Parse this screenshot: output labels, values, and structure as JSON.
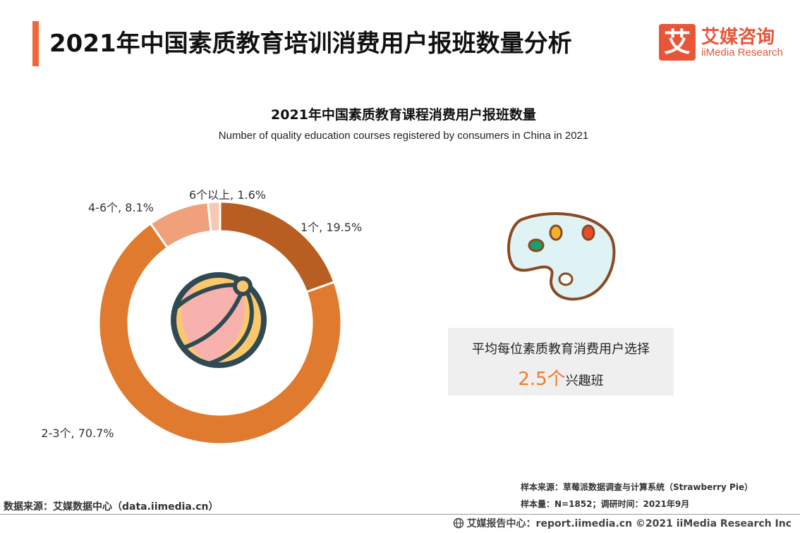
{
  "header": {
    "title": "2021年中国素质教育培训消费用户报班数量分析",
    "logo_cn": "艾媒咨询",
    "logo_en": "iiMedia Research",
    "logo_glyph": "艾"
  },
  "chart_data": {
    "type": "pie",
    "title": "2021年中国素质教育课程消费用户报班数量",
    "subtitle": "Number of quality education courses registered by consumers in China in 2021",
    "categories": [
      "1个",
      "2-3个",
      "4-6个",
      "6个以上"
    ],
    "values": [
      19.5,
      70.7,
      8.1,
      1.6
    ],
    "labels": [
      "1个, 19.5%",
      "2-3个, 70.7%",
      "4-6个, 8.1%",
      "6个以上, 1.6%"
    ],
    "colors": [
      "#b85e22",
      "#e07a2e",
      "#f0a07a",
      "#f6c9b4"
    ],
    "donut": true
  },
  "info": {
    "line1": "平均每位素质教育消费用户选择",
    "value": "2.5个",
    "suffix": "兴趣班"
  },
  "footer": {
    "source_left": "数据来源：艾媒数据中心（data.iimedia.cn）",
    "sample_source": "样本来源：草莓派数据调查与计算系统（Strawberry Pie）",
    "sample_size": "样本量：N=1852；调研时间：2021年9月",
    "report": "艾媒报告中心：report.iimedia.cn   ©2021  iiMedia Research  Inc"
  }
}
